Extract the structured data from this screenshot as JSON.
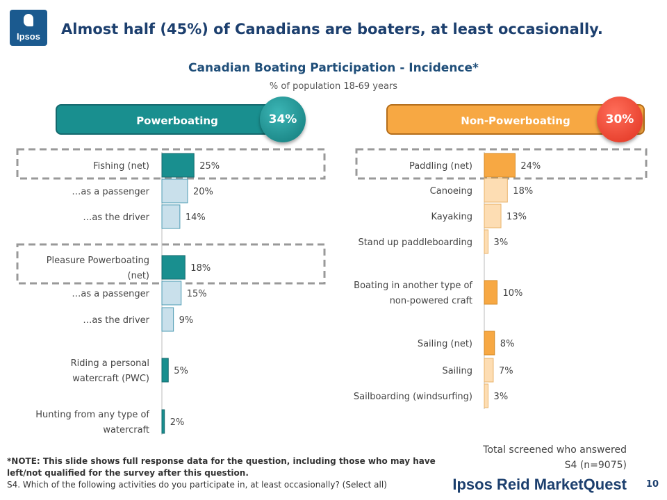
{
  "logo": {
    "text": "Ipsos"
  },
  "headline": "Almost half (45%) of Canadians are boaters, at least occasionally.",
  "chart_title": "Canadian Boating Participation - Incidence*",
  "chart_subtitle": "% of population 18-69 years",
  "colors": {
    "teal_dark": "#198f8f",
    "teal_light": "#c9e0eb",
    "orange_dark": "#f7a843",
    "orange_light": "#fdddb3",
    "red_circle": "#e0321f",
    "navy": "#1c3f6e"
  },
  "left_banner": {
    "label": "Powerboating",
    "value": "34%"
  },
  "right_banner": {
    "label": "Non-Powerboating",
    "value": "30%"
  },
  "chart_data": [
    {
      "type": "bar",
      "orientation": "horizontal",
      "group": "Powerboating",
      "categories": [
        "Fishing (net)",
        "…as a passenger",
        "…as the driver",
        "Pleasure Powerboating (net)",
        "…as a passenger",
        "…as the driver",
        "Riding a personal watercraft (PWC)",
        "Hunting from any type of watercraft"
      ],
      "values": [
        25,
        20,
        14,
        18,
        15,
        9,
        5,
        2
      ],
      "value_labels": [
        "25%",
        "20%",
        "14%",
        "18%",
        "15%",
        "9%",
        "5%",
        "2%"
      ],
      "styles": [
        "dark",
        "light",
        "light",
        "dark",
        "light",
        "light",
        "dark",
        "dark"
      ],
      "highlighted": [
        0,
        3
      ]
    },
    {
      "type": "bar",
      "orientation": "horizontal",
      "group": "Non-Powerboating",
      "categories": [
        "Paddling (net)",
        "Canoeing",
        "Kayaking",
        "Stand up paddleboarding",
        "Boating in another type of non-powered craft",
        "Sailing (net)",
        "Sailing",
        "Sailboarding (windsurfing)"
      ],
      "values": [
        24,
        18,
        13,
        3,
        10,
        8,
        7,
        3
      ],
      "value_labels": [
        "24%",
        "18%",
        "13%",
        "3%",
        "10%",
        "8%",
        "7%",
        "3%"
      ],
      "styles": [
        "dark",
        "light",
        "light",
        "light",
        "dark",
        "dark",
        "light",
        "light"
      ],
      "highlighted": [
        0
      ]
    }
  ],
  "note_bold": "*NOTE: This slide shows full response data for the question, including those who may have left/not qualified for the survey after this question.",
  "note_question": "S4. Which of the following activities do you participate in, at least occasionally? (Select all)",
  "base_line1": "Total screened who answered",
  "base_line2": "S4 (n=9075)",
  "brand": "Ipsos Reid MarketQuest",
  "page_number": "10"
}
